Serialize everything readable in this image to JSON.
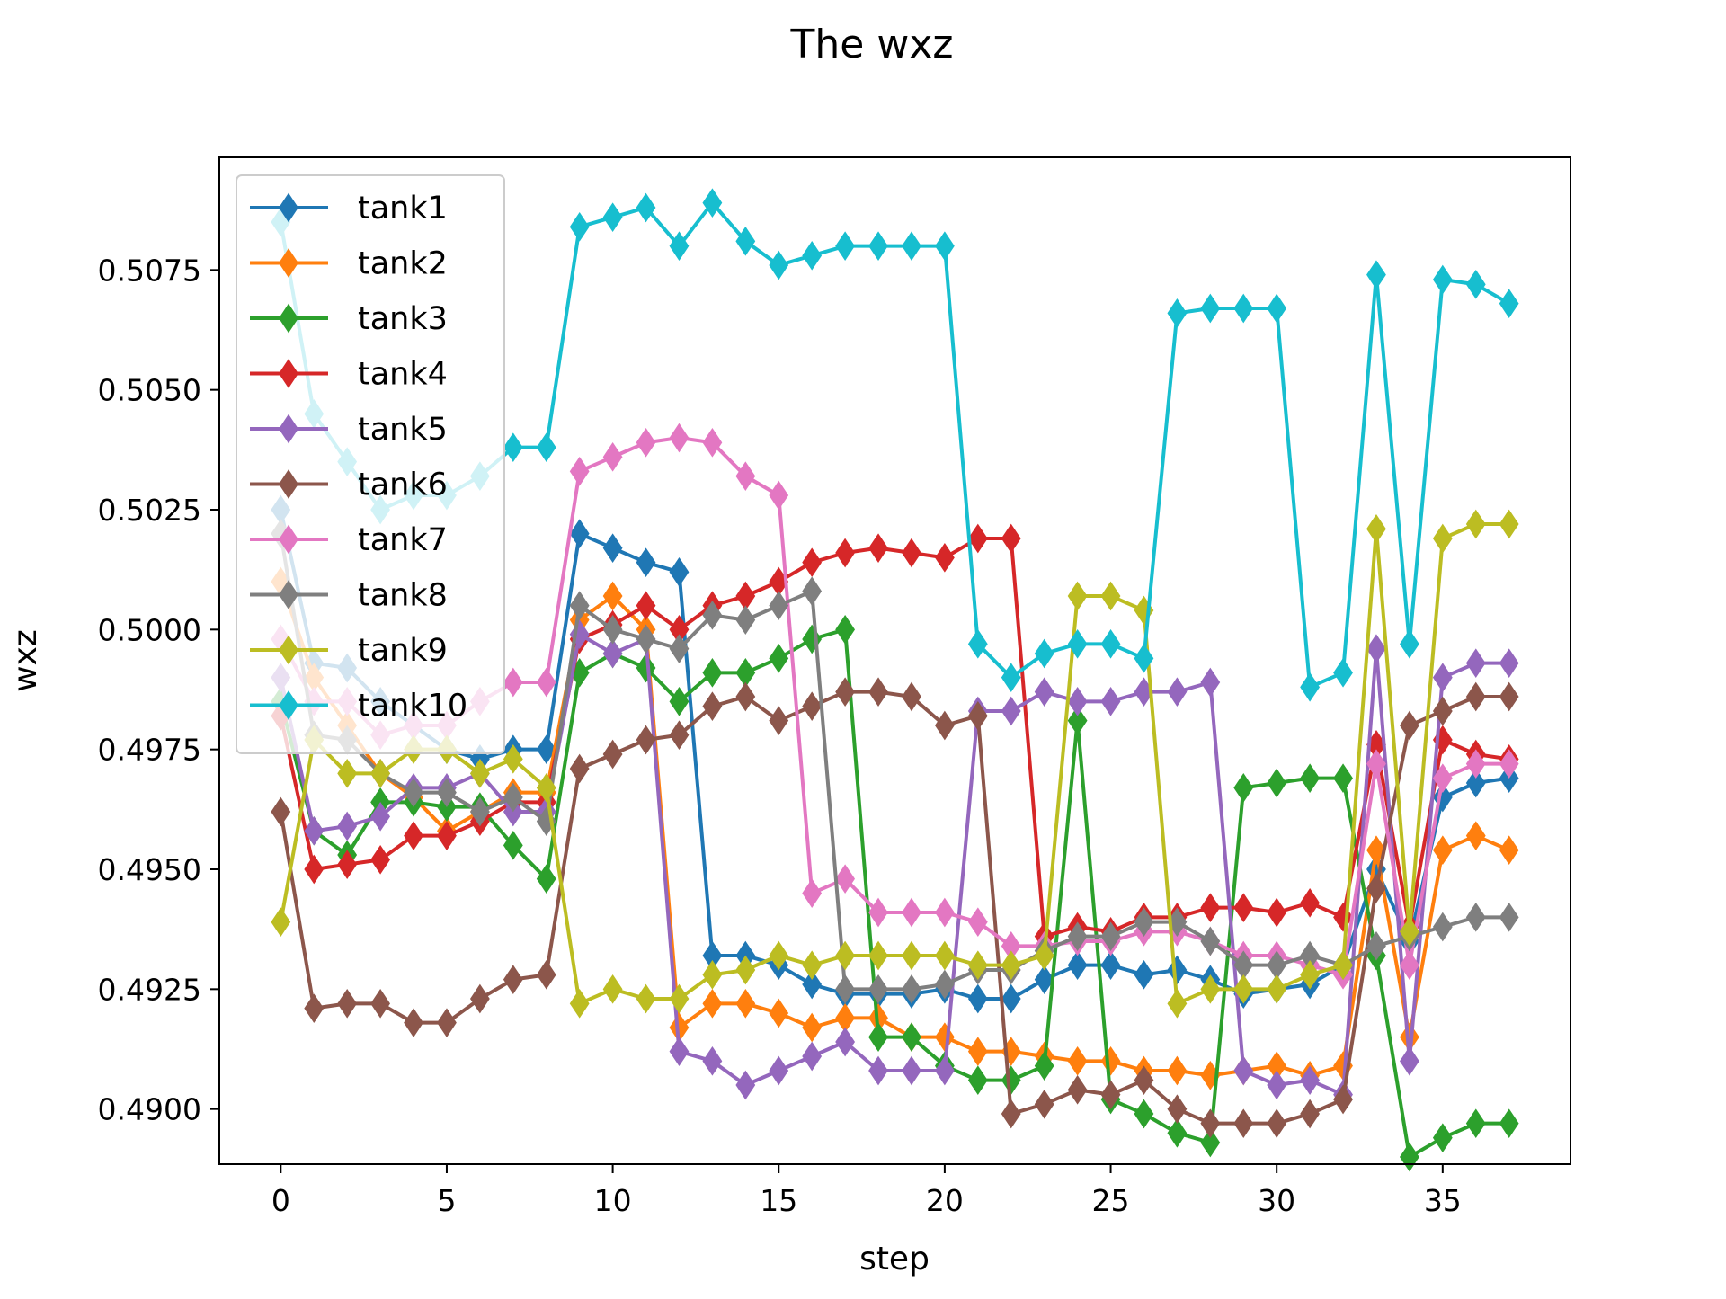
{
  "chart_data": {
    "type": "line",
    "title": "The wxz",
    "xlabel": "step",
    "ylabel": "wxz",
    "xlim": [
      -1.85,
      38.85
    ],
    "ylim": [
      0.48885,
      0.50985
    ],
    "xticks": [
      0,
      5,
      10,
      15,
      20,
      25,
      30,
      35
    ],
    "yticks": [
      0.49,
      0.4925,
      0.495,
      0.4975,
      0.5,
      0.5025,
      0.505,
      0.5075
    ],
    "ytick_labels": [
      "0.4900",
      "0.4925",
      "0.4950",
      "0.4975",
      "0.5000",
      "0.5025",
      "0.5050",
      "0.5075"
    ],
    "grid": false,
    "legend_position": "upper-left",
    "marker": "diamond",
    "x": [
      0,
      1,
      2,
      3,
      4,
      5,
      6,
      7,
      8,
      9,
      10,
      11,
      12,
      13,
      14,
      15,
      16,
      17,
      18,
      19,
      20,
      21,
      22,
      23,
      24,
      25,
      26,
      27,
      28,
      29,
      30,
      31,
      32,
      33,
      34,
      35,
      36,
      37
    ],
    "series": [
      {
        "name": "tank1",
        "color": "#1f77b4",
        "values": [
          0.5025,
          0.4993,
          0.4992,
          0.4985,
          0.498,
          0.4975,
          0.4973,
          0.4975,
          0.4975,
          0.502,
          0.5017,
          0.5014,
          0.5012,
          0.4932,
          0.4932,
          0.493,
          0.4926,
          0.4924,
          0.4924,
          0.4924,
          0.4925,
          0.4923,
          0.4923,
          0.4927,
          0.493,
          0.493,
          0.4928,
          0.4929,
          0.4927,
          0.4924,
          0.4925,
          0.4926,
          0.493,
          0.495,
          0.4935,
          0.4965,
          0.4968,
          0.4969
        ]
      },
      {
        "name": "tank2",
        "color": "#ff7f0e",
        "values": [
          0.501,
          0.499,
          0.498,
          0.497,
          0.4965,
          0.4958,
          0.4962,
          0.4966,
          0.4966,
          0.5002,
          0.5007,
          0.5,
          0.4917,
          0.4922,
          0.4922,
          0.492,
          0.4917,
          0.4919,
          0.4919,
          0.4915,
          0.4915,
          0.4912,
          0.4912,
          0.4911,
          0.491,
          0.491,
          0.4908,
          0.4908,
          0.4907,
          0.4908,
          0.4909,
          0.4907,
          0.4909,
          0.4954,
          0.4915,
          0.4954,
          0.4957,
          0.4954
        ]
      },
      {
        "name": "tank3",
        "color": "#2ca02c",
        "values": [
          0.4985,
          0.4958,
          0.4953,
          0.4964,
          0.4964,
          0.4963,
          0.4963,
          0.4955,
          0.4948,
          0.4991,
          0.4995,
          0.4992,
          0.4985,
          0.4991,
          0.4991,
          0.4994,
          0.4998,
          0.5,
          0.4915,
          0.4915,
          0.4909,
          0.4906,
          0.4906,
          0.4909,
          0.4981,
          0.4902,
          0.4899,
          0.4895,
          0.4893,
          0.4967,
          0.4968,
          0.4969,
          0.4969,
          0.4932,
          0.489,
          0.4894,
          0.4897,
          0.4897
        ]
      },
      {
        "name": "tank4",
        "color": "#d62728",
        "values": [
          0.4982,
          0.495,
          0.4951,
          0.4952,
          0.4957,
          0.4957,
          0.496,
          0.4964,
          0.4964,
          0.4998,
          0.5001,
          0.5005,
          0.5,
          0.5005,
          0.5007,
          0.501,
          0.5014,
          0.5016,
          0.5017,
          0.5016,
          0.5015,
          0.5019,
          0.5019,
          0.4936,
          0.4938,
          0.4937,
          0.494,
          0.494,
          0.4942,
          0.4942,
          0.4941,
          0.4943,
          0.494,
          0.4976,
          0.4938,
          0.4977,
          0.4974,
          0.4973
        ]
      },
      {
        "name": "tank5",
        "color": "#9467bd",
        "values": [
          0.499,
          0.4958,
          0.4959,
          0.4961,
          0.4967,
          0.4967,
          0.497,
          0.4962,
          0.4962,
          0.4999,
          0.4995,
          0.4998,
          0.4912,
          0.491,
          0.4905,
          0.4908,
          0.4911,
          0.4914,
          0.4908,
          0.4908,
          0.4908,
          0.4983,
          0.4983,
          0.4987,
          0.4985,
          0.4985,
          0.4987,
          0.4987,
          0.4989,
          0.4908,
          0.4905,
          0.4906,
          0.4903,
          0.4996,
          0.491,
          0.499,
          0.4993,
          0.4993
        ]
      },
      {
        "name": "tank6",
        "color": "#8c564b",
        "values": [
          0.4962,
          0.4921,
          0.4922,
          0.4922,
          0.4918,
          0.4918,
          0.4923,
          0.4927,
          0.4928,
          0.4971,
          0.4974,
          0.4977,
          0.4978,
          0.4984,
          0.4986,
          0.4981,
          0.4984,
          0.4987,
          0.4987,
          0.4986,
          0.498,
          0.4982,
          0.4899,
          0.4901,
          0.4904,
          0.4903,
          0.4906,
          0.49,
          0.4897,
          0.4897,
          0.4897,
          0.4899,
          0.4902,
          0.4946,
          0.498,
          0.4983,
          0.4986,
          0.4986
        ]
      },
      {
        "name": "tank7",
        "color": "#e377c2",
        "values": [
          0.4998,
          0.4985,
          0.4985,
          0.4978,
          0.498,
          0.498,
          0.4985,
          0.4989,
          0.4989,
          0.5033,
          0.5036,
          0.5039,
          0.504,
          0.5039,
          0.5032,
          0.5028,
          0.4945,
          0.4948,
          0.4941,
          0.4941,
          0.4941,
          0.4939,
          0.4934,
          0.4934,
          0.4935,
          0.4935,
          0.4937,
          0.4937,
          0.4935,
          0.4932,
          0.4932,
          0.493,
          0.4928,
          0.4972,
          0.493,
          0.4969,
          0.4972,
          0.4972
        ]
      },
      {
        "name": "tank8",
        "color": "#7f7f7f",
        "values": [
          0.502,
          0.4978,
          0.4977,
          0.497,
          0.4966,
          0.4966,
          0.4962,
          0.4965,
          0.496,
          0.5005,
          0.5,
          0.4998,
          0.4996,
          0.5003,
          0.5002,
          0.5005,
          0.5008,
          0.4925,
          0.4925,
          0.4925,
          0.4926,
          0.4929,
          0.4929,
          0.4933,
          0.4936,
          0.4936,
          0.4939,
          0.4939,
          0.4935,
          0.493,
          0.493,
          0.4932,
          0.493,
          0.4934,
          0.4936,
          0.4938,
          0.494,
          0.494
        ]
      },
      {
        "name": "tank9",
        "color": "#bcbd22",
        "values": [
          0.4939,
          0.4977,
          0.497,
          0.497,
          0.4975,
          0.4975,
          0.497,
          0.4973,
          0.4967,
          0.4922,
          0.4925,
          0.4923,
          0.4923,
          0.4928,
          0.4929,
          0.4932,
          0.493,
          0.4932,
          0.4932,
          0.4932,
          0.4932,
          0.493,
          0.493,
          0.4932,
          0.5007,
          0.5007,
          0.5004,
          0.4922,
          0.4925,
          0.4925,
          0.4925,
          0.4928,
          0.493,
          0.5021,
          0.4937,
          0.5019,
          0.5022,
          0.5022
        ]
      },
      {
        "name": "tank10",
        "color": "#17becf",
        "values": [
          0.5085,
          0.5045,
          0.5035,
          0.5025,
          0.5028,
          0.5028,
          0.5032,
          0.5038,
          0.5038,
          0.5084,
          0.5086,
          0.5088,
          0.508,
          0.5089,
          0.5081,
          0.5076,
          0.5078,
          0.508,
          0.508,
          0.508,
          0.508,
          0.4997,
          0.499,
          0.4995,
          0.4997,
          0.4997,
          0.4994,
          0.5066,
          0.5067,
          0.5067,
          0.5067,
          0.4988,
          0.4991,
          0.5074,
          0.4997,
          0.5073,
          0.5072,
          0.5068
        ]
      }
    ]
  }
}
